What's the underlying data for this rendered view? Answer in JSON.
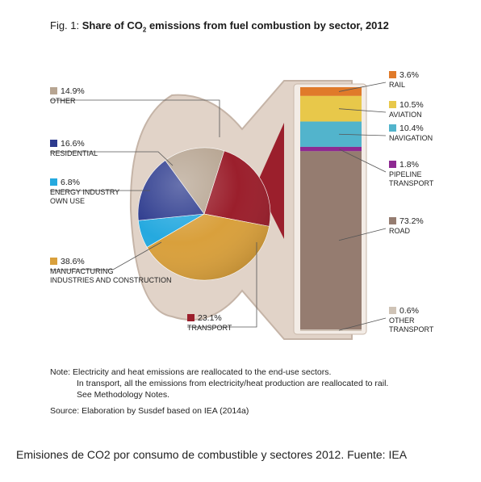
{
  "title": {
    "prefix": "Fig. 1: ",
    "main_a": "Share of CO",
    "main_sub": "2",
    "main_b": " emissions from fuel combustion by sector, 2012"
  },
  "chart_data": {
    "type": "pie",
    "title": "Fig. 1: Share of CO2 emissions from fuel combustion by sector, 2012",
    "slices": [
      {
        "label": "OTHER",
        "value": 14.9,
        "value_label": "14.9%",
        "color": "#b7a592"
      },
      {
        "label": "TRANSPORT",
        "value": 23.1,
        "value_label": "23.1%",
        "color": "#9b1f2c"
      },
      {
        "label": "MANUFACTURING INDUSTRIES AND CONSTRUCTION",
        "label_lines": [
          "MANUFACTURING",
          "INDUSTRIES AND CONSTRUCTION"
        ],
        "value": 38.6,
        "value_label": "38.6%",
        "color": "#d9a03c"
      },
      {
        "label": "ENERGY INDUSTRY OWN USE",
        "label_lines": [
          "ENERGY INDUSTRY",
          "OWN USE"
        ],
        "value": 6.8,
        "value_label": "6.8%",
        "color": "#25a9df"
      },
      {
        "label": "RESIDENTIAL",
        "value": 16.6,
        "value_label": "16.6%",
        "color": "#2d3b8e"
      }
    ],
    "breakdown": {
      "of": "TRANSPORT",
      "type": "stacked-bar",
      "segments": [
        {
          "label": "RAIL",
          "value": 3.6,
          "value_label": "3.6%",
          "color": "#e07a2a"
        },
        {
          "label": "AVIATION",
          "value": 10.5,
          "value_label": "10.5%",
          "color": "#e8c84a"
        },
        {
          "label": "NAVIGATION",
          "value": 10.4,
          "value_label": "10.4%",
          "color": "#52b4cc"
        },
        {
          "label": "PIPELINE TRANSPORT",
          "label_lines": [
            "PIPELINE",
            "TRANSPORT"
          ],
          "value": 1.8,
          "value_label": "1.8%",
          "color": "#8e2a92"
        },
        {
          "label": "ROAD",
          "value": 73.2,
          "value_label": "73.2%",
          "color": "#957c70"
        },
        {
          "label": "OTHER TRANSPORT",
          "label_lines": [
            "OTHER",
            "TRANSPORT"
          ],
          "value": 0.6,
          "value_label": "0.6%",
          "color": "#cfc3b6"
        }
      ]
    }
  },
  "note": {
    "line1": "Note: Electricity and heat emissions are reallocated to the end-use sectors.",
    "line2": "In transport, all the emissions from electricity/heat production are reallocated to rail.",
    "line3": "See Methodology Notes."
  },
  "source": "Source: Elaboration by Susdef based on IEA (2014a)",
  "caption": "Emisiones de CO2 por consumo de combustible y sectores 2012. Fuente: IEA"
}
